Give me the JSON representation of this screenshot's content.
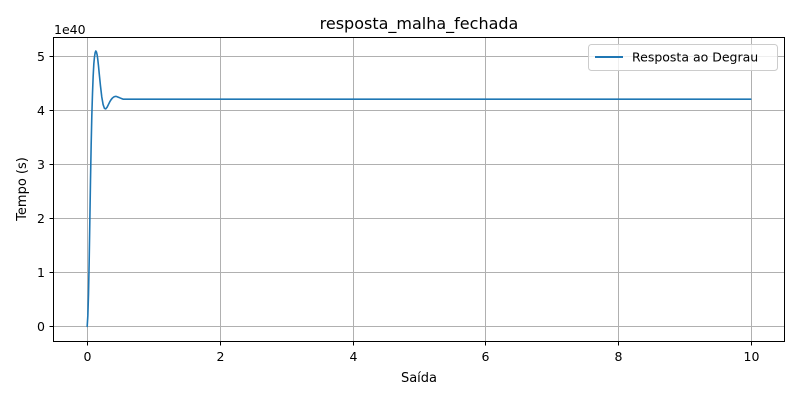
{
  "chart_data": {
    "type": "line",
    "title": "resposta_malha_fechada",
    "xlabel": "Saída",
    "ylabel": "Tempo (s)",
    "offset_label": "1e40",
    "xlim": [
      -0.5,
      10.5
    ],
    "ylim": [
      -0.27,
      5.33
    ],
    "x_ticks": [
      0,
      2,
      4,
      6,
      8,
      10
    ],
    "x_tick_labels": [
      "0",
      "2",
      "4",
      "6",
      "8",
      "10"
    ],
    "y_ticks": [
      0,
      1,
      2,
      3,
      4,
      5
    ],
    "y_tick_labels": [
      "0",
      "1",
      "2",
      "3",
      "4",
      "5"
    ],
    "grid": true,
    "legend_position": "top-right",
    "series": [
      {
        "name": "Resposta ao Degrau",
        "color": "#1f77b4",
        "x": [
          0,
          0.01,
          0.02,
          0.03,
          0.04,
          0.05,
          0.06,
          0.07,
          0.08,
          0.09,
          0.1,
          0.11,
          0.12,
          0.13,
          0.14,
          0.15,
          0.16,
          0.17,
          0.18,
          0.2,
          0.22,
          0.24,
          0.26,
          0.28,
          0.3,
          0.32,
          0.34,
          0.36,
          0.38,
          0.4,
          0.42,
          0.44,
          0.46,
          0.48,
          0.5,
          0.52,
          0.54,
          0.56,
          0.58,
          0.6,
          0.62,
          0.65,
          0.7,
          0.75,
          0.8,
          0.9,
          1.0,
          1.5,
          2,
          3,
          4,
          5,
          6,
          7,
          8,
          9,
          10
        ],
        "y": [
          0,
          0.2,
          0.6,
          1.2,
          1.95,
          2.7,
          3.35,
          3.9,
          4.3,
          4.62,
          4.85,
          4.98,
          5.06,
          5.09,
          5.07,
          5.02,
          4.93,
          4.82,
          4.69,
          4.45,
          4.24,
          4.1,
          4.03,
          4.02,
          4.05,
          4.1,
          4.15,
          4.19,
          4.22,
          4.24,
          4.25,
          4.25,
          4.24,
          4.23,
          4.22,
          4.21,
          4.2,
          4.2,
          4.2,
          4.2,
          4.2,
          4.2,
          4.2,
          4.2,
          4.2,
          4.2,
          4.2,
          4.2,
          4.2,
          4.2,
          4.2,
          4.2,
          4.2,
          4.2,
          4.2,
          4.2,
          4.2
        ]
      }
    ]
  }
}
